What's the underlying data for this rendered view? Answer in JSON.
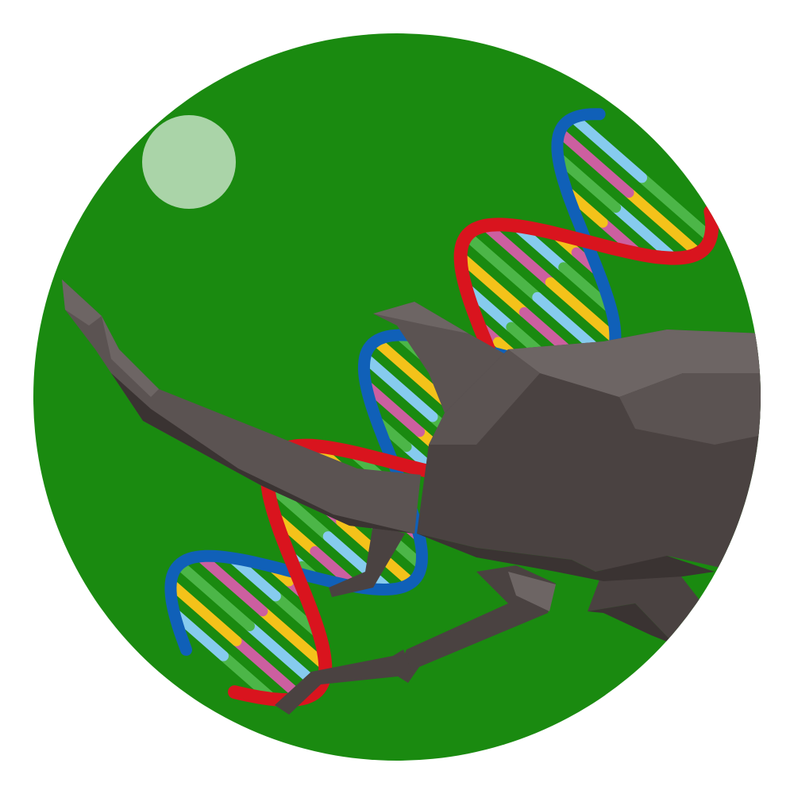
{
  "colors": {
    "page_background": "#ffffff",
    "badge_green": "#1a8a10",
    "highlight_circle": "#aad4a8",
    "dna_strand_red": "#d9141e",
    "dna_strand_blue": "#1060b8",
    "base_pair_colors": [
      "#f4c21a",
      "#4cb648",
      "#cc5fa0",
      "#86cbee"
    ],
    "beetle_dark": "#4a4241",
    "beetle_mid": "#5b5352",
    "beetle_light": "#6d6564",
    "beetle_shadow": "#3a3332"
  },
  "icons": {
    "badge": "green-circle-badge",
    "highlight": "light-green-dot",
    "dna": "dna-double-helix-icon",
    "beetle": "low-poly-rhinoceros-beetle-icon"
  }
}
